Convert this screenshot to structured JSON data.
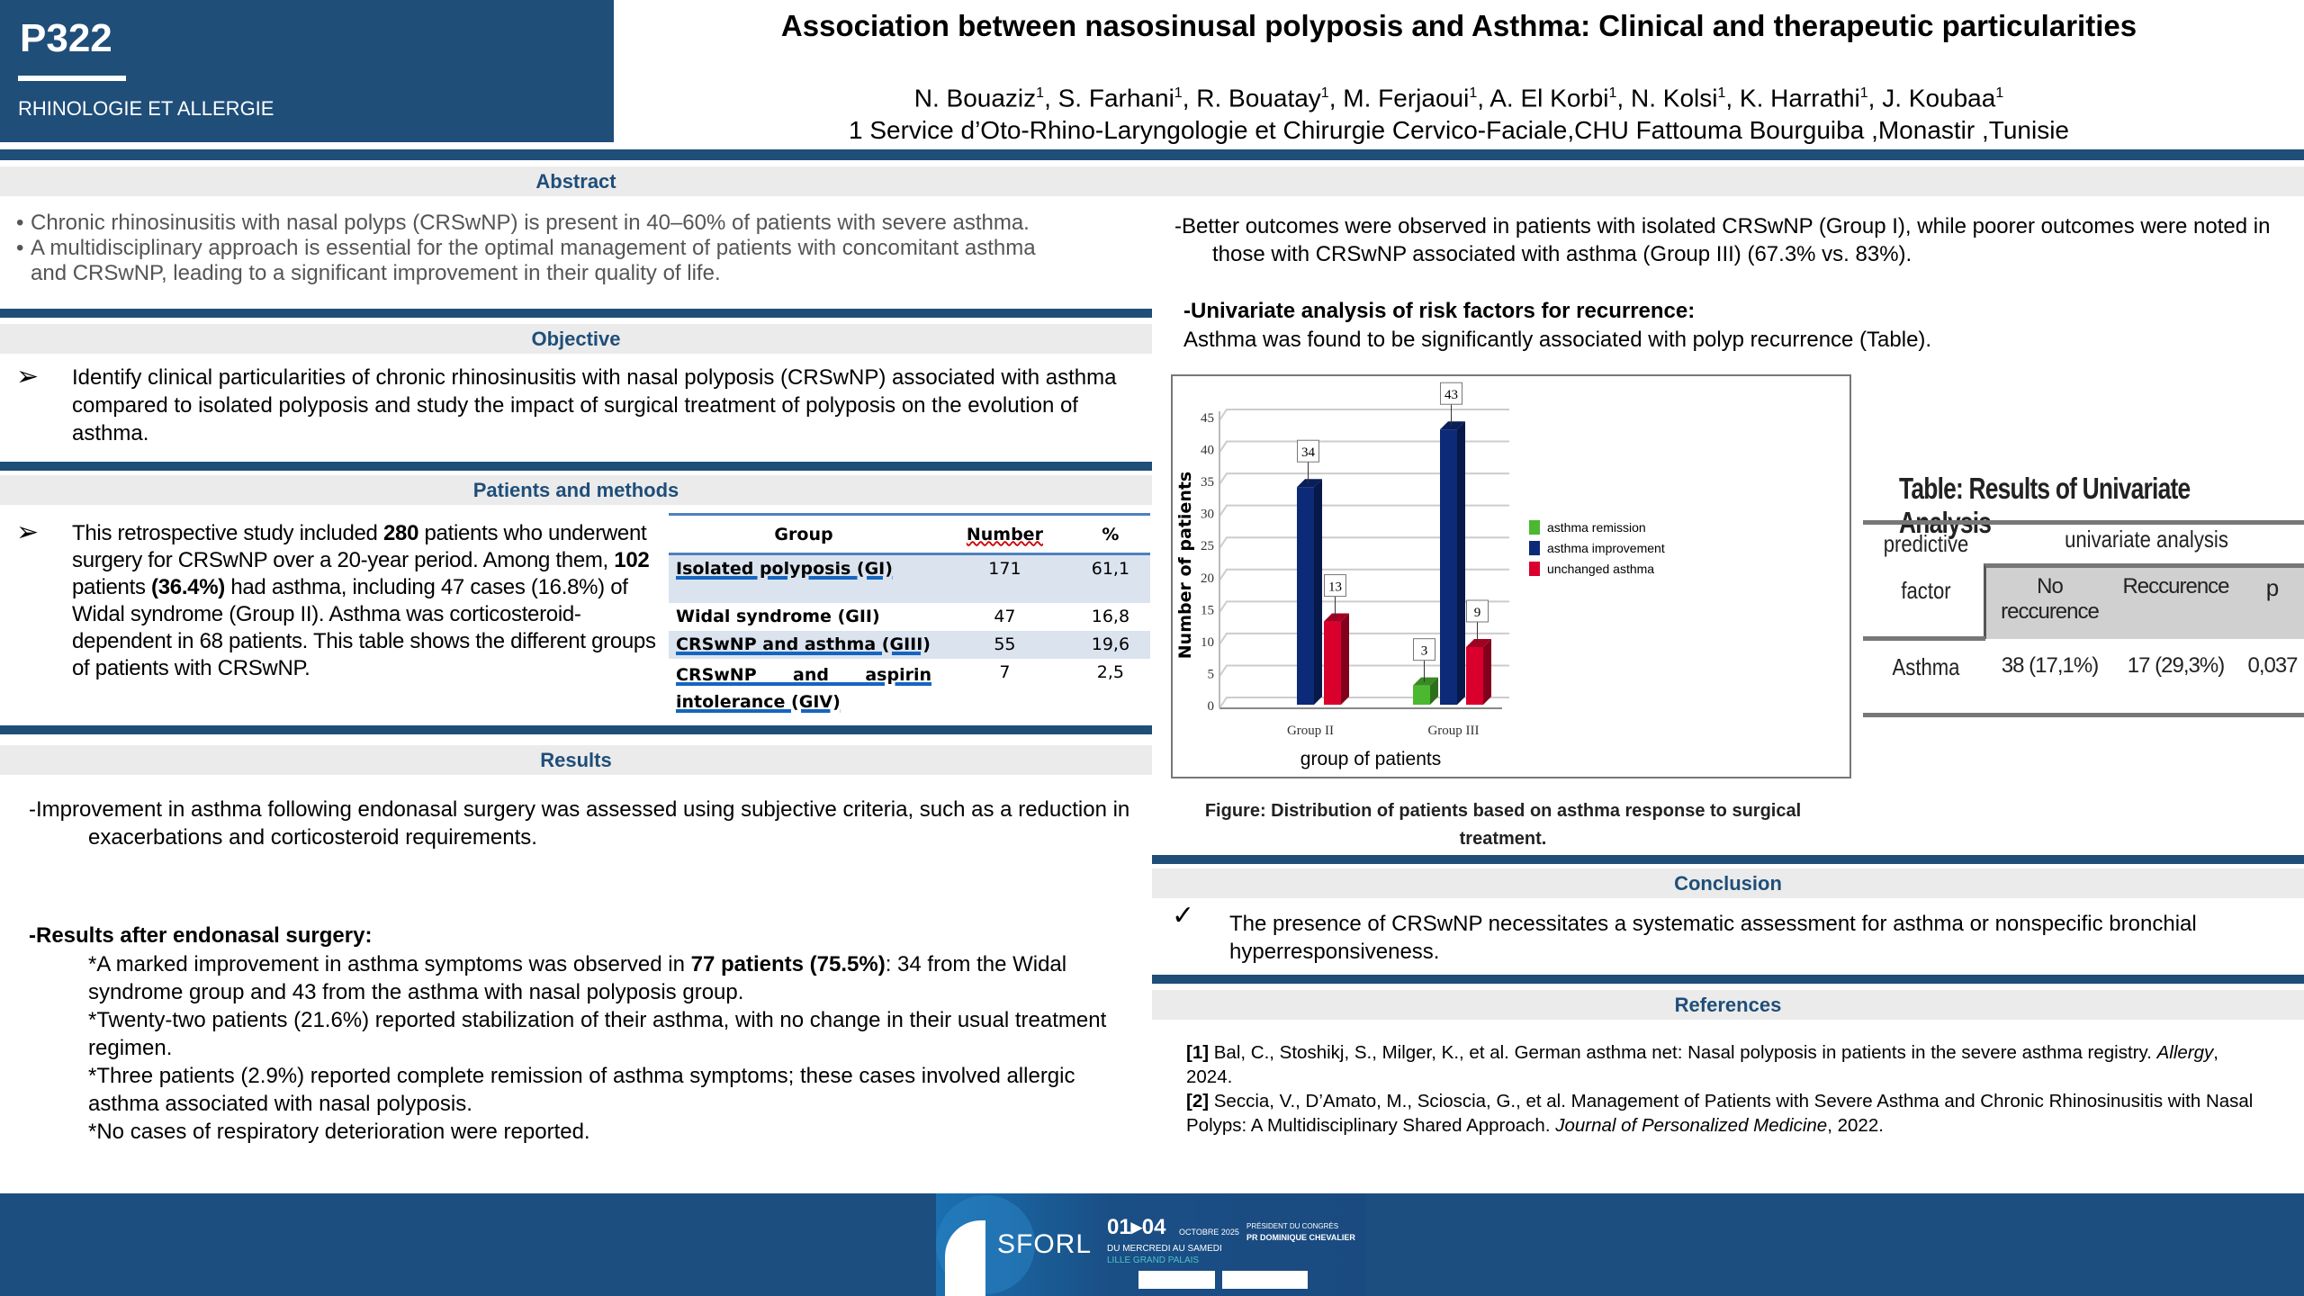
{
  "header": {
    "code": "P322",
    "category": "RHINOLOGIE ET ALLERGIE",
    "title": "Association between nasosinusal polyposis and Asthma: Clinical and therapeutic particularities",
    "authors": [
      "N. Bouaziz",
      "S. Farhani",
      "R. Bouatay",
      "M. Ferjaoui",
      "A. El Korbi",
      "N. Kolsi",
      "K. Harrathi",
      "J. Koubaa"
    ],
    "affil_mark": "1",
    "affiliation": "1 Service d’Oto-Rhino-Laryngologie et Chirurgie Cervico-Faciale,CHU Fattouma Bourguiba ,Monastir ,Tunisie"
  },
  "abstract": {
    "title": "Abstract",
    "bullet": "•",
    "items": [
      "Chronic rhinosinusitis with nasal polyps (CRSwNP) is present in 40–60% of patients with severe asthma.",
      "A multidisciplinary approach is essential for the optimal management of patients with concomitant asthma and CRSwNP, leading to a significant improvement in their quality of life."
    ]
  },
  "objective": {
    "title": "Objective",
    "marker": "➢",
    "text": "Identify clinical particularities of chronic rhinosinusitis with nasal polyposis (CRSwNP) associated with asthma compared to isolated polyposis and study the impact of surgical treatment of polyposis on the evolution of asthma."
  },
  "methods": {
    "title": "Patients and methods",
    "marker": "➢",
    "t1": "This retrospective study included ",
    "b1": "280",
    "t2": " patients who underwent surgery for CRSwNP over a 20-year period. Among them, ",
    "b2": "102",
    "t3": " patients ",
    "b3": "(36.4%)",
    "t4": " had asthma, including 47 cases (16.8%) of Widal syndrome (Group II). Asthma was corticosteroid-dependent in 68 patients. This table shows the different groups of patients with CRSwNP.",
    "table": {
      "headers": [
        "Group",
        "Number",
        "%"
      ],
      "rows": [
        [
          "Isolated polyposis (GI)",
          "171",
          "61,1"
        ],
        [
          "Widal syndrome (GII)",
          "47",
          "16,8"
        ],
        [
          "CRSwNP and asthma (GIII)",
          "55",
          "19,6"
        ],
        [
          "CRSwNP and aspirin intolerance (GIV)",
          "7",
          "2,5"
        ]
      ]
    }
  },
  "results": {
    "title": "Results",
    "intro": "-Improvement in asthma following endonasal surgery was assessed using subjective criteria, such as a reduction in exacerbations and corticosteroid requirements.",
    "after_title": "-Results after endonasal surgery:",
    "r1a": "*A marked improvement in asthma symptoms was observed in ",
    "r1b": "77 patients (75.5%)",
    "r1c": ": 34 from the Widal syndrome group and 43 from the asthma with nasal polyposis group.",
    "r2": "*Twenty-two patients (21.6%) reported stabilization of their asthma, with no change in their usual treatment regimen.",
    "r3": "*Three patients (2.9%) reported complete remission of asthma symptoms; these cases involved allergic asthma associated with nasal polyposis.",
    "r4": "*No cases of respiratory deterioration were reported.",
    "outcomes": "-Better outcomes were observed in patients with isolated CRSwNP (Group I), while poorer outcomes were noted in those with CRSwNP associated with asthma (Group III) (67.3% vs. 83%).",
    "univ_title": "-Univariate analysis of risk factors for recurrence:",
    "univ_text": "Asthma was found to be significantly associated with polyp recurrence (Table).",
    "figure_caption": "Figure: Distribution of patients based on asthma response to surgical treatment."
  },
  "chart_data": {
    "type": "bar",
    "title": "",
    "xlabel": "group of patients",
    "ylabel": "Number of patients",
    "categories": [
      "Group   II",
      "Group   III"
    ],
    "series": [
      {
        "name": "asthma remission",
        "color": "#4cb830",
        "values": [
          0,
          3
        ]
      },
      {
        "name": "asthma improvement",
        "color": "#0d2a78",
        "values": [
          34,
          43
        ]
      },
      {
        "name": "unchanged asthma",
        "color": "#d9002e",
        "values": [
          13,
          9
        ]
      }
    ],
    "ylim": [
      0,
      45
    ],
    "yticks": [
      0,
      5,
      10,
      15,
      20,
      25,
      30,
      35,
      40,
      45
    ],
    "grid": true,
    "legend": "right"
  },
  "univariate": {
    "title": "Table: Results of Univariate Analysis",
    "col0": "predictive factor",
    "group": "univariate analysis",
    "cols": [
      "No reccurence",
      "Reccurence",
      "p"
    ],
    "row": {
      "factor": "Asthma",
      "values": [
        "38 (17,1%)",
        "17 (29,3%)",
        "0,037"
      ]
    }
  },
  "conclusion": {
    "title": "Conclusion",
    "marker": "✓",
    "text": "The presence of CRSwNP necessitates a systematic assessment for asthma or nonspecific bronchial hyperresponsiveness."
  },
  "references": {
    "title": "References",
    "items": [
      {
        "num": "[1]",
        "text": " Bal, C., Stoshikj, S., Milger, K., et al. German asthma net: Nasal polyposis in patients in the severe asthma registry. ",
        "journal": "Allergy",
        "tail": ", 2024."
      },
      {
        "num": "[2]",
        "text": " Seccia, V., D’Amato, M., Scioscia, G., et al. Management of Patients with Severe Asthma and Chronic Rhinosinusitis with Nasal Polyps: A Multidisciplinary Shared Approach. ",
        "journal": "Journal of Personalized Medicine",
        "tail": ", 2022."
      }
    ]
  },
  "footer": {
    "banner": {
      "brand": "SFORL",
      "dates": "01▸04",
      "month": "OCTOBRE 2025",
      "days": "DU MERCREDI AU SAMEDI",
      "venue": "LILLE GRAND PALAIS",
      "president_label": "PRÉSIDENT DU CONGRÈS",
      "president": "PR DOMINIQUE CHEVALIER"
    }
  }
}
